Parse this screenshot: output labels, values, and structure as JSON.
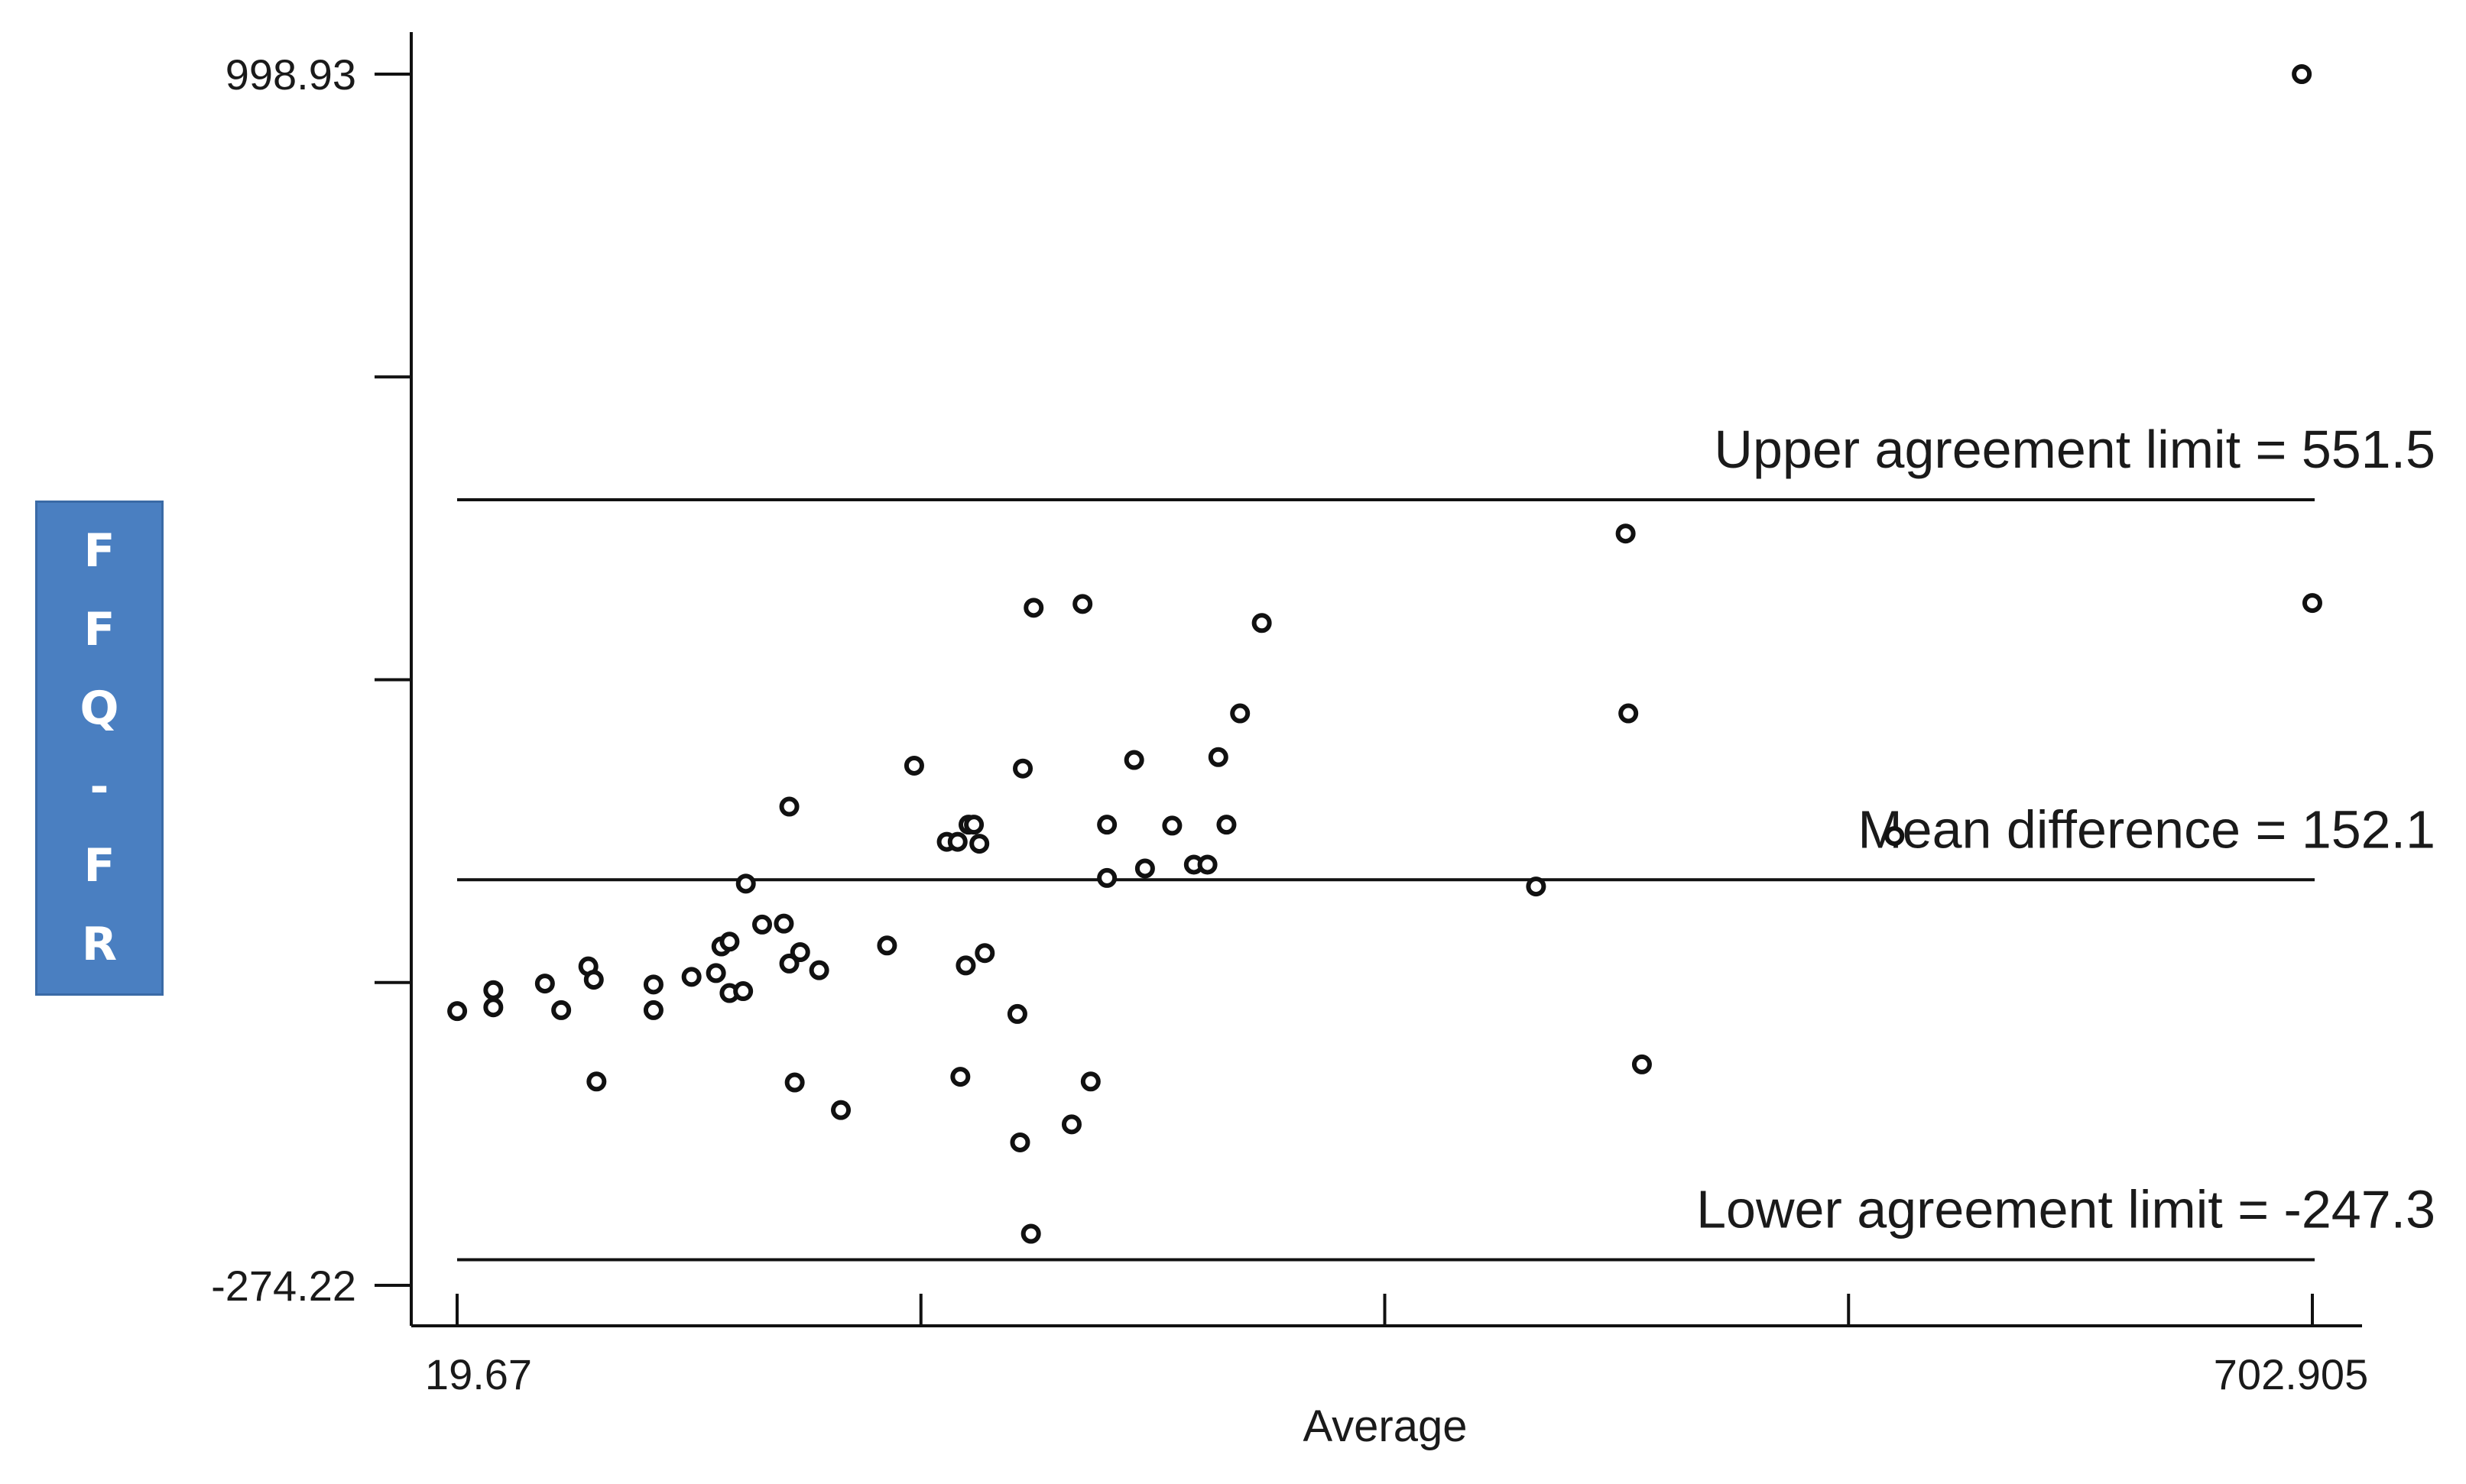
{
  "chart_data": {
    "type": "scatter",
    "title": "",
    "xlabel": "Average",
    "ylabel": "FFQ-FR",
    "x_ticks": [
      "19.67",
      "",
      "",
      "",
      "702.905"
    ],
    "y_ticks": [
      "998.93",
      "",
      "",
      "",
      "-274.22"
    ],
    "xlim": [
      19.67,
      702.905
    ],
    "ylim": [
      -274.22,
      998.93
    ],
    "reference_lines": [
      {
        "label": "Upper agreement limit = 551.5",
        "value": 551.5
      },
      {
        "label": "Mean difference = 152.1",
        "value": 152.1
      },
      {
        "label": "Lower agreement limit = -247.3",
        "value": -247.3
      }
    ],
    "points": [
      {
        "x": 19.7,
        "y": 14
      },
      {
        "x": 33,
        "y": 18
      },
      {
        "x": 33,
        "y": 36
      },
      {
        "x": 52,
        "y": 43
      },
      {
        "x": 58,
        "y": 15
      },
      {
        "x": 68,
        "y": 61
      },
      {
        "x": 70,
        "y": 47
      },
      {
        "x": 71,
        "y": -60
      },
      {
        "x": 92,
        "y": 42
      },
      {
        "x": 92,
        "y": 15
      },
      {
        "x": 106,
        "y": 50
      },
      {
        "x": 115,
        "y": 54
      },
      {
        "x": 117,
        "y": 82
      },
      {
        "x": 120,
        "y": 87
      },
      {
        "x": 120,
        "y": 33
      },
      {
        "x": 125,
        "y": 35
      },
      {
        "x": 126,
        "y": 148
      },
      {
        "x": 132,
        "y": 105
      },
      {
        "x": 140,
        "y": 106
      },
      {
        "x": 142,
        "y": 64
      },
      {
        "x": 142,
        "y": 229
      },
      {
        "x": 144,
        "y": -61
      },
      {
        "x": 146,
        "y": 76
      },
      {
        "x": 153,
        "y": 57
      },
      {
        "x": 161,
        "y": -90
      },
      {
        "x": 178,
        "y": 83
      },
      {
        "x": 188,
        "y": 272
      },
      {
        "x": 200,
        "y": 192
      },
      {
        "x": 204,
        "y": 192
      },
      {
        "x": 205,
        "y": -55
      },
      {
        "x": 207,
        "y": 62
      },
      {
        "x": 208,
        "y": 210
      },
      {
        "x": 210,
        "y": 210
      },
      {
        "x": 212,
        "y": 190
      },
      {
        "x": 214,
        "y": 75
      },
      {
        "x": 226,
        "y": 11
      },
      {
        "x": 227,
        "y": -124
      },
      {
        "x": 228,
        "y": 269
      },
      {
        "x": 231,
        "y": -220
      },
      {
        "x": 232,
        "y": 438
      },
      {
        "x": 246,
        "y": -105
      },
      {
        "x": 250,
        "y": 442
      },
      {
        "x": 253,
        "y": -60
      },
      {
        "x": 259,
        "y": 210
      },
      {
        "x": 259,
        "y": 154
      },
      {
        "x": 269,
        "y": 278
      },
      {
        "x": 273,
        "y": 164
      },
      {
        "x": 283,
        "y": 209
      },
      {
        "x": 291,
        "y": 168
      },
      {
        "x": 296,
        "y": 168
      },
      {
        "x": 300,
        "y": 281
      },
      {
        "x": 303,
        "y": 210
      },
      {
        "x": 308,
        "y": 327
      },
      {
        "x": 316,
        "y": 422
      },
      {
        "x": 417,
        "y": 145
      },
      {
        "x": 450,
        "y": 516
      },
      {
        "x": 451,
        "y": 327
      },
      {
        "x": 456,
        "y": -42
      },
      {
        "x": 549,
        "y": 198
      },
      {
        "x": 699,
        "y": 998.93
      },
      {
        "x": 702.9,
        "y": 443
      }
    ]
  }
}
